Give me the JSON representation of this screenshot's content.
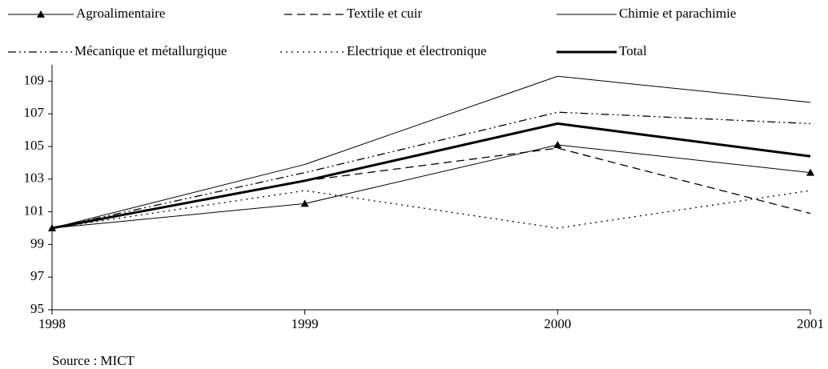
{
  "chart_data": {
    "type": "line",
    "x": [
      1998,
      1999,
      2000,
      2001
    ],
    "xlim": [
      1998,
      2001
    ],
    "xticks": [
      1998,
      1999,
      2000,
      2001
    ],
    "ylim": [
      95,
      110
    ],
    "yticks": [
      95,
      97,
      99,
      101,
      103,
      105,
      107,
      109
    ],
    "series": [
      {
        "name": "Agroalimentaire",
        "color": "#000000",
        "dash": "solid",
        "width": 1,
        "marker": "triangle",
        "values": [
          100,
          101.5,
          105.1,
          103.4
        ]
      },
      {
        "name": "Textile et cuir",
        "color": "#000000",
        "dash": "dashed",
        "width": 1.3,
        "values": [
          100,
          102.9,
          104.9,
          100.9
        ]
      },
      {
        "name": "Chimie et parachimie",
        "color": "#000000",
        "dash": "solid",
        "width": 1,
        "values": [
          100,
          103.9,
          109.3,
          107.7
        ]
      },
      {
        "name": "Mécanique et métallurgique",
        "color": "#000000",
        "dash": "dashdotdot",
        "width": 1.3,
        "values": [
          100,
          103.4,
          107.1,
          106.4
        ]
      },
      {
        "name": "Electrique et électronique",
        "color": "#000000",
        "dash": "dotted",
        "width": 1.3,
        "values": [
          100,
          102.3,
          100.0,
          102.3
        ]
      },
      {
        "name": "Total",
        "color": "#000000",
        "dash": "solid",
        "width": 3,
        "values": [
          100,
          102.9,
          106.4,
          104.4
        ]
      }
    ],
    "source": "Source : MICT"
  }
}
